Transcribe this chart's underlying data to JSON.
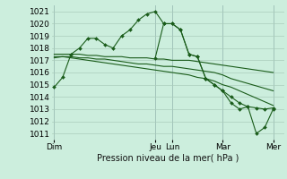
{
  "background_color": "#cceedd",
  "grid_color": "#aaccbb",
  "line_color": "#1a5c1a",
  "marker_color": "#1a5c1a",
  "title": "Pression niveau de la mer( hPa )",
  "ylim": [
    1010.5,
    1021.5
  ],
  "yticks": [
    1011,
    1012,
    1013,
    1014,
    1015,
    1016,
    1017,
    1018,
    1019,
    1020,
    1021
  ],
  "xlim": [
    -0.3,
    27.3
  ],
  "xtick_labels": [
    "Dim",
    "Jeu",
    "Lun",
    "Mar",
    "Mer"
  ],
  "xtick_positions": [
    0,
    12,
    14,
    20,
    26
  ],
  "series1_x": [
    0,
    1,
    2,
    3,
    4,
    5,
    6,
    7,
    8,
    9,
    10,
    11,
    12,
    13,
    14,
    15,
    16,
    17,
    18,
    19,
    20,
    21,
    22,
    23,
    24,
    25,
    26
  ],
  "series1_y": [
    1014.8,
    1015.6,
    1017.5,
    1018.0,
    1018.8,
    1018.8,
    1018.3,
    1018.0,
    1019.0,
    1019.5,
    1020.3,
    1020.8,
    1021.0,
    1020.0,
    1020.0,
    1019.5,
    1017.5,
    1017.3,
    1015.5,
    1015.0,
    1014.5,
    1014.0,
    1013.5,
    1013.2,
    1013.1,
    1013.0,
    1013.1
  ],
  "series2_x": [
    0,
    1,
    2,
    3,
    4,
    5,
    6,
    7,
    8,
    9,
    10,
    11,
    12,
    13,
    14,
    15,
    16,
    17,
    18,
    19,
    20,
    21,
    22,
    23,
    24,
    25,
    26
  ],
  "series2_y": [
    1017.5,
    1017.5,
    1017.5,
    1017.5,
    1017.4,
    1017.4,
    1017.3,
    1017.3,
    1017.3,
    1017.2,
    1017.2,
    1017.2,
    1017.1,
    1017.1,
    1017.0,
    1017.0,
    1017.0,
    1016.9,
    1016.8,
    1016.7,
    1016.6,
    1016.5,
    1016.4,
    1016.3,
    1016.2,
    1016.1,
    1016.0
  ],
  "series3_x": [
    0,
    1,
    2,
    3,
    4,
    5,
    6,
    7,
    8,
    9,
    10,
    11,
    12,
    13,
    14,
    15,
    16,
    17,
    18,
    19,
    20,
    21,
    22,
    23,
    24,
    25,
    26
  ],
  "series3_y": [
    1017.3,
    1017.3,
    1017.3,
    1017.2,
    1017.2,
    1017.1,
    1017.1,
    1017.0,
    1016.9,
    1016.8,
    1016.7,
    1016.7,
    1016.6,
    1016.5,
    1016.5,
    1016.4,
    1016.3,
    1016.2,
    1016.1,
    1016.0,
    1015.8,
    1015.5,
    1015.3,
    1015.1,
    1014.9,
    1014.7,
    1014.5
  ],
  "series4_x": [
    0,
    1,
    2,
    3,
    4,
    5,
    6,
    7,
    8,
    9,
    10,
    11,
    12,
    13,
    14,
    15,
    16,
    17,
    18,
    19,
    20,
    21,
    22,
    23,
    24,
    25,
    26
  ],
  "series4_y": [
    1017.2,
    1017.3,
    1017.2,
    1017.1,
    1017.0,
    1016.9,
    1016.8,
    1016.7,
    1016.6,
    1016.5,
    1016.4,
    1016.3,
    1016.2,
    1016.1,
    1016.0,
    1015.9,
    1015.8,
    1015.6,
    1015.5,
    1015.3,
    1015.0,
    1014.8,
    1014.5,
    1014.2,
    1013.9,
    1013.6,
    1013.3
  ],
  "series5_x": [
    12,
    13,
    14,
    15,
    16,
    17,
    18,
    19,
    20,
    21,
    22,
    23,
    24,
    25,
    26
  ],
  "series5_y": [
    1017.2,
    1020.0,
    1020.0,
    1019.5,
    1017.5,
    1017.3,
    1015.5,
    1015.0,
    1014.5,
    1013.5,
    1013.0,
    1013.2,
    1011.0,
    1011.5,
    1013.0
  ],
  "day_lines_x": [
    0,
    12,
    14,
    20,
    26
  ],
  "fontsize_title": 7,
  "fontsize_tick": 6.5
}
